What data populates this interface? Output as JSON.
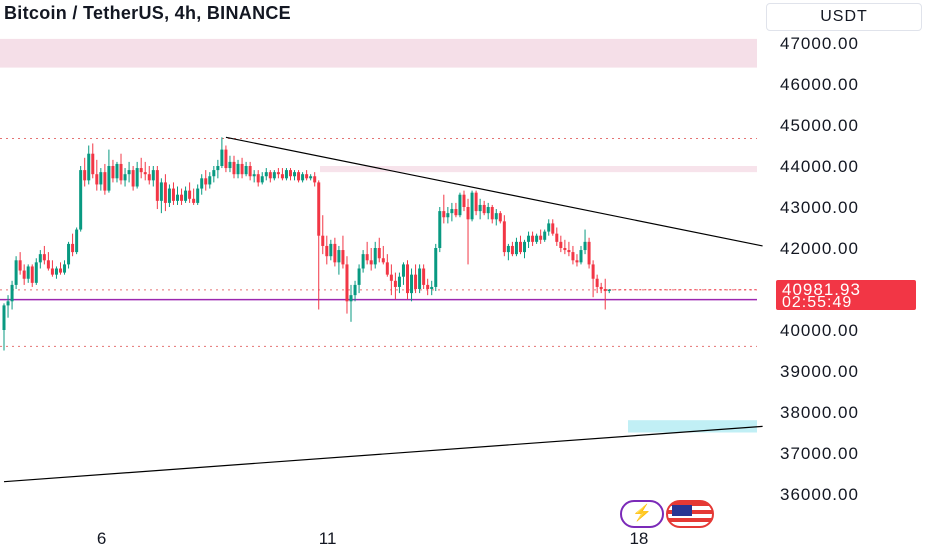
{
  "header": {
    "title": "Bitcoin / TetherUS, 4h, BINANCE",
    "currency": "USDT"
  },
  "price_tag": {
    "price": "40981.93",
    "countdown": "02:55:49"
  },
  "colors": {
    "up": "#089981",
    "down": "#f23645",
    "zone": "#f3d7e2",
    "support_zone": "#b2ebf2",
    "support_line": "#9c27b0",
    "grid_dotted": "#e57373",
    "trendline": "#000000"
  },
  "icons": {
    "badge_1": "lightning-icon",
    "badge_2": "us-flag-icon"
  },
  "chart_data": {
    "type": "candlestick",
    "symbol": "Bitcoin / TetherUS",
    "timeframe": "4h",
    "exchange": "BINANCE",
    "quote_currency": "USDT",
    "y_ticks": [
      47000,
      46000,
      45000,
      44000,
      43000,
      42000,
      41000,
      40000,
      39000,
      38000,
      37000,
      36000
    ],
    "y_tick_labels": [
      "47000.00",
      "46000.00",
      "45000.00",
      "44000.00",
      "43000.00",
      "42000.00",
      "",
      "40000.00",
      "39000.00",
      "38000.00",
      "37000.00",
      "36000.00"
    ],
    "x_ticks": [
      {
        "label": "6",
        "index": 24
      },
      {
        "label": "11",
        "index": 79
      },
      {
        "label": "18",
        "index": 156
      }
    ],
    "last_price": 40981.93,
    "horizontal_dotted_levels": [
      44670,
      40980,
      39600
    ],
    "support_line_level": 40740,
    "zones": [
      {
        "from": 46400,
        "to": 47100
      },
      {
        "from": 43850,
        "to": 44000
      },
      {
        "from": 37500,
        "to": 37800
      }
    ],
    "trendlines": [
      {
        "from": {
          "index": 55,
          "price": 44700
        },
        "to": {
          "index": 188,
          "price": 42050
        }
      },
      {
        "from": {
          "index": 0,
          "price": 36300
        },
        "to": {
          "index": 188,
          "price": 37650
        }
      }
    ],
    "candles": [
      [
        40000,
        40650,
        39500,
        40600
      ],
      [
        40600,
        40850,
        40300,
        40700
      ],
      [
        40700,
        41200,
        40500,
        41100
      ],
      [
        41100,
        41800,
        41000,
        41700
      ],
      [
        41700,
        41900,
        41350,
        41450
      ],
      [
        41450,
        41600,
        41100,
        41250
      ],
      [
        41250,
        41600,
        41150,
        41550
      ],
      [
        41550,
        41600,
        41050,
        41150
      ],
      [
        41150,
        41750,
        41100,
        41650
      ],
      [
        41650,
        41950,
        41500,
        41850
      ],
      [
        41850,
        42050,
        41600,
        41700
      ],
      [
        41700,
        41900,
        41450,
        41500
      ],
      [
        41500,
        41700,
        41300,
        41350
      ],
      [
        41350,
        41550,
        41250,
        41500
      ],
      [
        41500,
        41650,
        41350,
        41400
      ],
      [
        41400,
        41700,
        41350,
        41600
      ],
      [
        41600,
        42150,
        41500,
        42100
      ],
      [
        42100,
        42350,
        41800,
        41900
      ],
      [
        41900,
        42500,
        41850,
        42450
      ],
      [
        42450,
        44000,
        42400,
        43900
      ],
      [
        43900,
        44200,
        43500,
        43650
      ],
      [
        43650,
        44500,
        43550,
        44300
      ],
      [
        44300,
        44550,
        43700,
        43800
      ],
      [
        43800,
        44150,
        43400,
        43550
      ],
      [
        43550,
        43950,
        43400,
        43850
      ],
      [
        43850,
        44050,
        43300,
        43400
      ],
      [
        43400,
        44400,
        43350,
        44000
      ],
      [
        44000,
        44150,
        43600,
        43700
      ],
      [
        43700,
        44100,
        43600,
        44050
      ],
      [
        44050,
        44300,
        43550,
        43650
      ],
      [
        43650,
        43950,
        43500,
        43800
      ],
      [
        43800,
        44100,
        43600,
        43900
      ],
      [
        43900,
        44000,
        43400,
        43500
      ],
      [
        43500,
        44100,
        43450,
        43950
      ],
      [
        43950,
        44200,
        43700,
        43850
      ],
      [
        43850,
        44100,
        43650,
        43800
      ],
      [
        43800,
        44000,
        43550,
        43650
      ],
      [
        43650,
        44000,
        43500,
        43900
      ],
      [
        43900,
        44000,
        42950,
        43150
      ],
      [
        43150,
        43700,
        42850,
        43600
      ],
      [
        43600,
        43800,
        42900,
        43100
      ],
      [
        43100,
        43550,
        43000,
        43450
      ],
      [
        43450,
        43600,
        43050,
        43150
      ],
      [
        43150,
        43500,
        43050,
        43300
      ],
      [
        43300,
        43450,
        43050,
        43150
      ],
      [
        43150,
        43500,
        43100,
        43400
      ],
      [
        43400,
        43600,
        43100,
        43200
      ],
      [
        43200,
        43450,
        43050,
        43100
      ],
      [
        43100,
        43550,
        43050,
        43450
      ],
      [
        43450,
        43800,
        43300,
        43700
      ],
      [
        43700,
        43900,
        43400,
        43550
      ],
      [
        43550,
        43850,
        43450,
        43750
      ],
      [
        43750,
        44000,
        43600,
        43900
      ],
      [
        43900,
        44150,
        43700,
        44000
      ],
      [
        44000,
        44700,
        43950,
        44400
      ],
      [
        44400,
        44500,
        43850,
        43950
      ],
      [
        43950,
        44250,
        43850,
        44100
      ],
      [
        44100,
        44250,
        43700,
        43800
      ],
      [
        43800,
        44150,
        43700,
        44050
      ],
      [
        44050,
        44200,
        43700,
        43800
      ],
      [
        43800,
        44100,
        43750,
        44000
      ],
      [
        44000,
        44100,
        43650,
        43750
      ],
      [
        43750,
        43900,
        43600,
        43800
      ],
      [
        43800,
        43900,
        43500,
        43600
      ],
      [
        43600,
        43850,
        43550,
        43750
      ],
      [
        43750,
        43950,
        43650,
        43850
      ],
      [
        43850,
        43900,
        43600,
        43700
      ],
      [
        43700,
        43900,
        43650,
        43850
      ],
      [
        43850,
        43950,
        43700,
        43800
      ],
      [
        43800,
        43950,
        43650,
        43700
      ],
      [
        43700,
        43950,
        43650,
        43900
      ],
      [
        43900,
        43950,
        43650,
        43750
      ],
      [
        43750,
        43900,
        43650,
        43850
      ],
      [
        43850,
        43900,
        43600,
        43650
      ],
      [
        43650,
        43850,
        43600,
        43800
      ],
      [
        43800,
        43900,
        43650,
        43700
      ],
      [
        43700,
        43800,
        43650,
        43750
      ],
      [
        43750,
        43850,
        43500,
        43600
      ],
      [
        43600,
        43650,
        40500,
        42300
      ],
      [
        42300,
        42800,
        41850,
        42050
      ],
      [
        42050,
        42300,
        41600,
        41800
      ],
      [
        41800,
        42200,
        41700,
        42100
      ],
      [
        42100,
        42250,
        41550,
        41650
      ],
      [
        41650,
        42050,
        41350,
        41950
      ],
      [
        41950,
        42300,
        41500,
        41600
      ],
      [
        41600,
        41800,
        40400,
        40700
      ],
      [
        40700,
        41100,
        40200,
        40850
      ],
      [
        40850,
        41200,
        40700,
        41100
      ],
      [
        41100,
        41600,
        40900,
        41500
      ],
      [
        41500,
        41950,
        41400,
        41850
      ],
      [
        41850,
        42150,
        41600,
        41700
      ],
      [
        41700,
        42000,
        41450,
        41600
      ],
      [
        41600,
        42150,
        41500,
        42000
      ],
      [
        42000,
        42250,
        41650,
        41750
      ],
      [
        41750,
        42050,
        41600,
        41650
      ],
      [
        41650,
        41850,
        41300,
        41350
      ],
      [
        41350,
        41600,
        40850,
        41200
      ],
      [
        41200,
        41400,
        40750,
        41050
      ],
      [
        41050,
        41400,
        40900,
        41300
      ],
      [
        41300,
        41650,
        41100,
        41600
      ],
      [
        41600,
        41700,
        40750,
        40900
      ],
      [
        40900,
        41500,
        40700,
        41350
      ],
      [
        41350,
        41600,
        40900,
        41000
      ],
      [
        41000,
        41600,
        40900,
        41500
      ],
      [
        41500,
        41600,
        41000,
        41100
      ],
      [
        41100,
        41250,
        40850,
        41000
      ],
      [
        41000,
        41200,
        40850,
        41050
      ],
      [
        41050,
        42100,
        40950,
        42000
      ],
      [
        42000,
        43000,
        41900,
        42900
      ],
      [
        42900,
        43300,
        42600,
        42750
      ],
      [
        42750,
        43000,
        42600,
        42850
      ],
      [
        42850,
        43100,
        42650,
        42950
      ],
      [
        42950,
        43100,
        42750,
        42800
      ],
      [
        42800,
        43350,
        42750,
        43300
      ],
      [
        43300,
        43400,
        42900,
        43000
      ],
      [
        43000,
        43200,
        41600,
        42700
      ],
      [
        42700,
        43400,
        42650,
        43350
      ],
      [
        43350,
        43400,
        42800,
        42900
      ],
      [
        42900,
        43200,
        42700,
        43050
      ],
      [
        43050,
        43150,
        42800,
        42850
      ],
      [
        42850,
        43100,
        42700,
        43000
      ],
      [
        43000,
        43050,
        42600,
        42700
      ],
      [
        42700,
        42950,
        42550,
        42850
      ],
      [
        42850,
        42900,
        42600,
        42650
      ],
      [
        42650,
        42800,
        41800,
        41900
      ],
      [
        41900,
        42100,
        41700,
        42050
      ],
      [
        42050,
        42150,
        41800,
        41850
      ],
      [
        41850,
        42250,
        41800,
        42150
      ],
      [
        42150,
        42300,
        41850,
        41900
      ],
      [
        41900,
        42200,
        41750,
        42150
      ],
      [
        42150,
        42400,
        42000,
        42300
      ],
      [
        42300,
        42400,
        42050,
        42150
      ],
      [
        42150,
        42350,
        42100,
        42300
      ],
      [
        42300,
        42450,
        42100,
        42200
      ],
      [
        42200,
        42450,
        42150,
        42400
      ],
      [
        42400,
        42700,
        42300,
        42600
      ],
      [
        42600,
        42700,
        42300,
        42350
      ],
      [
        42350,
        42500,
        42050,
        42150
      ],
      [
        42150,
        42300,
        41900,
        42000
      ],
      [
        42000,
        42200,
        41850,
        41950
      ],
      [
        41950,
        42150,
        41800,
        41900
      ],
      [
        41900,
        42050,
        41600,
        41700
      ],
      [
        41700,
        41850,
        41550,
        41650
      ],
      [
        41650,
        42050,
        41600,
        41950
      ],
      [
        41950,
        42450,
        41850,
        42150
      ],
      [
        42150,
        42250,
        41500,
        41600
      ],
      [
        41600,
        41700,
        40800,
        41250
      ],
      [
        41250,
        41350,
        40900,
        41050
      ],
      [
        41050,
        41150,
        40900,
        41000
      ],
      [
        41000,
        41250,
        40500,
        40950
      ],
      [
        40950,
        41000,
        40900,
        40982
      ]
    ]
  }
}
